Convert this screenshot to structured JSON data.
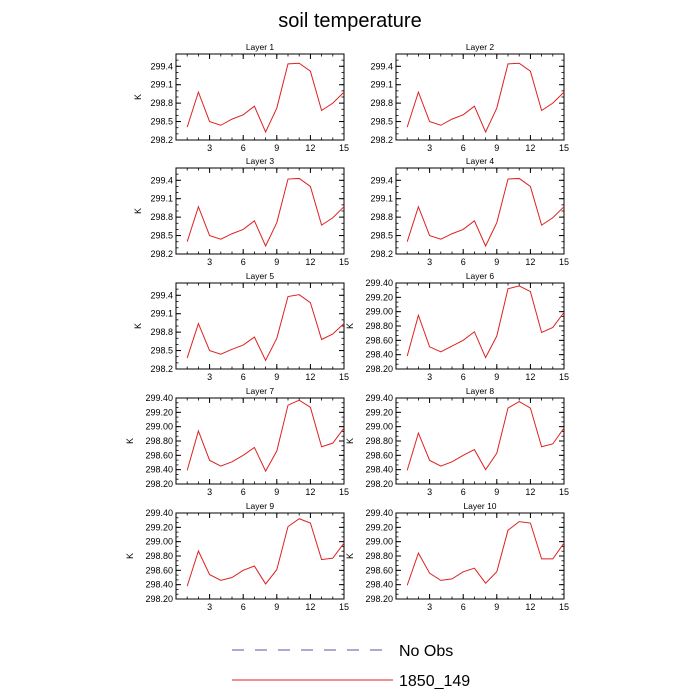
{
  "title": "soil temperature",
  "legend": [
    {
      "label": "No Obs",
      "color": "#5555aa",
      "dash": true
    },
    {
      "label": "1850_149",
      "color": "#dd2222",
      "dash": false
    }
  ],
  "chart_data": [
    {
      "type": "line",
      "title": "Layer 1",
      "ylabel": "K",
      "xlim": [
        0,
        15
      ],
      "ylim": [
        298.2,
        299.6
      ],
      "x_ticks": [
        "3",
        "6",
        "9",
        "12",
        "15"
      ],
      "y_ticks": [
        "298.2",
        "298.5",
        "298.8",
        "299.1",
        "299.4"
      ],
      "x": [
        1,
        2,
        3,
        4,
        5,
        6,
        7,
        8,
        9,
        10,
        11,
        12,
        13,
        14,
        15
      ],
      "series": [
        {
          "name": "1850_149",
          "values": [
            298.41,
            298.98,
            298.5,
            298.44,
            298.54,
            298.61,
            298.75,
            298.33,
            298.72,
            299.44,
            299.45,
            299.32,
            298.68,
            298.8,
            298.98
          ]
        }
      ]
    },
    {
      "type": "line",
      "title": "Layer 2",
      "ylabel": "",
      "xlim": [
        0,
        15
      ],
      "ylim": [
        298.2,
        299.6
      ],
      "x_ticks": [
        "3",
        "6",
        "9",
        "12",
        "15"
      ],
      "y_ticks": [
        "298.2",
        "298.5",
        "298.8",
        "299.1",
        "299.4"
      ],
      "x": [
        1,
        2,
        3,
        4,
        5,
        6,
        7,
        8,
        9,
        10,
        11,
        12,
        13,
        14,
        15
      ],
      "series": [
        {
          "name": "1850_149",
          "values": [
            298.41,
            298.98,
            298.5,
            298.44,
            298.54,
            298.61,
            298.75,
            298.33,
            298.72,
            299.44,
            299.45,
            299.32,
            298.68,
            298.8,
            298.98
          ]
        }
      ]
    },
    {
      "type": "line",
      "title": "Layer 3",
      "ylabel": "K",
      "xlim": [
        0,
        15
      ],
      "ylim": [
        298.2,
        299.6
      ],
      "x_ticks": [
        "3",
        "6",
        "9",
        "12",
        "15"
      ],
      "y_ticks": [
        "298.2",
        "298.5",
        "298.8",
        "299.1",
        "299.4"
      ],
      "x": [
        1,
        2,
        3,
        4,
        5,
        6,
        7,
        8,
        9,
        10,
        11,
        12,
        13,
        14,
        15
      ],
      "series": [
        {
          "name": "1850_149",
          "values": [
            298.4,
            298.97,
            298.5,
            298.44,
            298.53,
            298.6,
            298.74,
            298.33,
            298.71,
            299.42,
            299.43,
            299.3,
            298.67,
            298.79,
            298.97
          ]
        }
      ]
    },
    {
      "type": "line",
      "title": "Layer 4",
      "ylabel": "",
      "xlim": [
        0,
        15
      ],
      "ylim": [
        298.2,
        299.6
      ],
      "x_ticks": [
        "3",
        "6",
        "9",
        "12",
        "15"
      ],
      "y_ticks": [
        "298.2",
        "298.5",
        "298.8",
        "299.1",
        "299.4"
      ],
      "x": [
        1,
        2,
        3,
        4,
        5,
        6,
        7,
        8,
        9,
        10,
        11,
        12,
        13,
        14,
        15
      ],
      "series": [
        {
          "name": "1850_149",
          "values": [
            298.4,
            298.97,
            298.5,
            298.44,
            298.53,
            298.6,
            298.74,
            298.33,
            298.71,
            299.42,
            299.43,
            299.3,
            298.67,
            298.79,
            298.97
          ]
        }
      ]
    },
    {
      "type": "line",
      "title": "Layer 5",
      "ylabel": "K",
      "xlim": [
        0,
        15
      ],
      "ylim": [
        298.2,
        299.6
      ],
      "x_ticks": [
        "3",
        "6",
        "9",
        "12",
        "15"
      ],
      "y_ticks": [
        "298.2",
        "298.5",
        "298.8",
        "299.1",
        "299.4"
      ],
      "x": [
        1,
        2,
        3,
        4,
        5,
        6,
        7,
        8,
        9,
        10,
        11,
        12,
        13,
        14,
        15
      ],
      "series": [
        {
          "name": "1850_149",
          "values": [
            298.38,
            298.94,
            298.5,
            298.44,
            298.52,
            298.59,
            298.72,
            298.34,
            298.7,
            299.38,
            299.41,
            299.28,
            298.68,
            298.77,
            298.94
          ]
        }
      ]
    },
    {
      "type": "line",
      "title": "Layer 6",
      "ylabel": "K",
      "xlim": [
        0,
        15
      ],
      "ylim": [
        298.2,
        299.4
      ],
      "x_ticks": [
        "3",
        "6",
        "9",
        "12",
        "15"
      ],
      "y_ticks": [
        "298.20",
        "298.40",
        "298.60",
        "298.80",
        "299.00",
        "299.20",
        "299.40"
      ],
      "x": [
        1,
        2,
        3,
        4,
        5,
        6,
        7,
        8,
        9,
        10,
        11,
        12,
        13,
        14,
        15
      ],
      "series": [
        {
          "name": "1850_149",
          "values": [
            298.38,
            298.95,
            298.51,
            298.44,
            298.52,
            298.6,
            298.72,
            298.36,
            298.66,
            299.32,
            299.36,
            299.28,
            298.71,
            298.78,
            298.99
          ]
        }
      ]
    },
    {
      "type": "line",
      "title": "Layer 7",
      "ylabel": "K",
      "xlim": [
        0,
        15
      ],
      "ylim": [
        298.2,
        299.4
      ],
      "x_ticks": [
        "3",
        "6",
        "9",
        "12",
        "15"
      ],
      "y_ticks": [
        "298.20",
        "298.40",
        "298.60",
        "298.80",
        "299.00",
        "299.20",
        "299.40"
      ],
      "x": [
        1,
        2,
        3,
        4,
        5,
        6,
        7,
        8,
        9,
        10,
        11,
        12,
        13,
        14,
        15
      ],
      "series": [
        {
          "name": "1850_149",
          "values": [
            298.39,
            298.94,
            298.53,
            298.45,
            298.51,
            298.6,
            298.71,
            298.38,
            298.66,
            299.3,
            299.37,
            299.27,
            298.72,
            298.77,
            298.98
          ]
        }
      ]
    },
    {
      "type": "line",
      "title": "Layer 8",
      "ylabel": "K",
      "xlim": [
        0,
        15
      ],
      "ylim": [
        298.2,
        299.4
      ],
      "x_ticks": [
        "3",
        "6",
        "9",
        "12",
        "15"
      ],
      "y_ticks": [
        "298.20",
        "298.40",
        "298.60",
        "298.80",
        "299.00",
        "299.20",
        "299.40"
      ],
      "x": [
        1,
        2,
        3,
        4,
        5,
        6,
        7,
        8,
        9,
        10,
        11,
        12,
        13,
        14,
        15
      ],
      "series": [
        {
          "name": "1850_149",
          "values": [
            298.39,
            298.91,
            298.53,
            298.45,
            298.51,
            298.6,
            298.68,
            298.4,
            298.63,
            299.26,
            299.35,
            299.26,
            298.72,
            298.76,
            298.98
          ]
        }
      ]
    },
    {
      "type": "line",
      "title": "Layer 9",
      "ylabel": "K",
      "xlim": [
        0,
        15
      ],
      "ylim": [
        298.2,
        299.4
      ],
      "x_ticks": [
        "3",
        "6",
        "9",
        "12",
        "15"
      ],
      "y_ticks": [
        "298.20",
        "298.40",
        "298.60",
        "298.80",
        "299.00",
        "299.20",
        "299.40"
      ],
      "x": [
        1,
        2,
        3,
        4,
        5,
        6,
        7,
        8,
        9,
        10,
        11,
        12,
        13,
        14,
        15
      ],
      "series": [
        {
          "name": "1850_149",
          "values": [
            298.38,
            298.87,
            298.54,
            298.46,
            298.5,
            298.6,
            298.66,
            298.41,
            298.61,
            299.21,
            299.32,
            299.26,
            298.75,
            298.77,
            298.98
          ]
        }
      ]
    },
    {
      "type": "line",
      "title": "Layer 10",
      "ylabel": "K",
      "xlim": [
        0,
        15
      ],
      "ylim": [
        298.2,
        299.4
      ],
      "x_ticks": [
        "3",
        "6",
        "9",
        "12",
        "15"
      ],
      "y_ticks": [
        "298.20",
        "298.40",
        "298.60",
        "298.80",
        "299.00",
        "299.20",
        "299.40"
      ],
      "x": [
        1,
        2,
        3,
        4,
        5,
        6,
        7,
        8,
        9,
        10,
        11,
        12,
        13,
        14,
        15
      ],
      "series": [
        {
          "name": "1850_149",
          "values": [
            298.39,
            298.84,
            298.56,
            298.46,
            298.48,
            298.58,
            298.63,
            298.42,
            298.58,
            299.16,
            299.28,
            299.26,
            298.76,
            298.76,
            298.98
          ]
        }
      ]
    }
  ]
}
